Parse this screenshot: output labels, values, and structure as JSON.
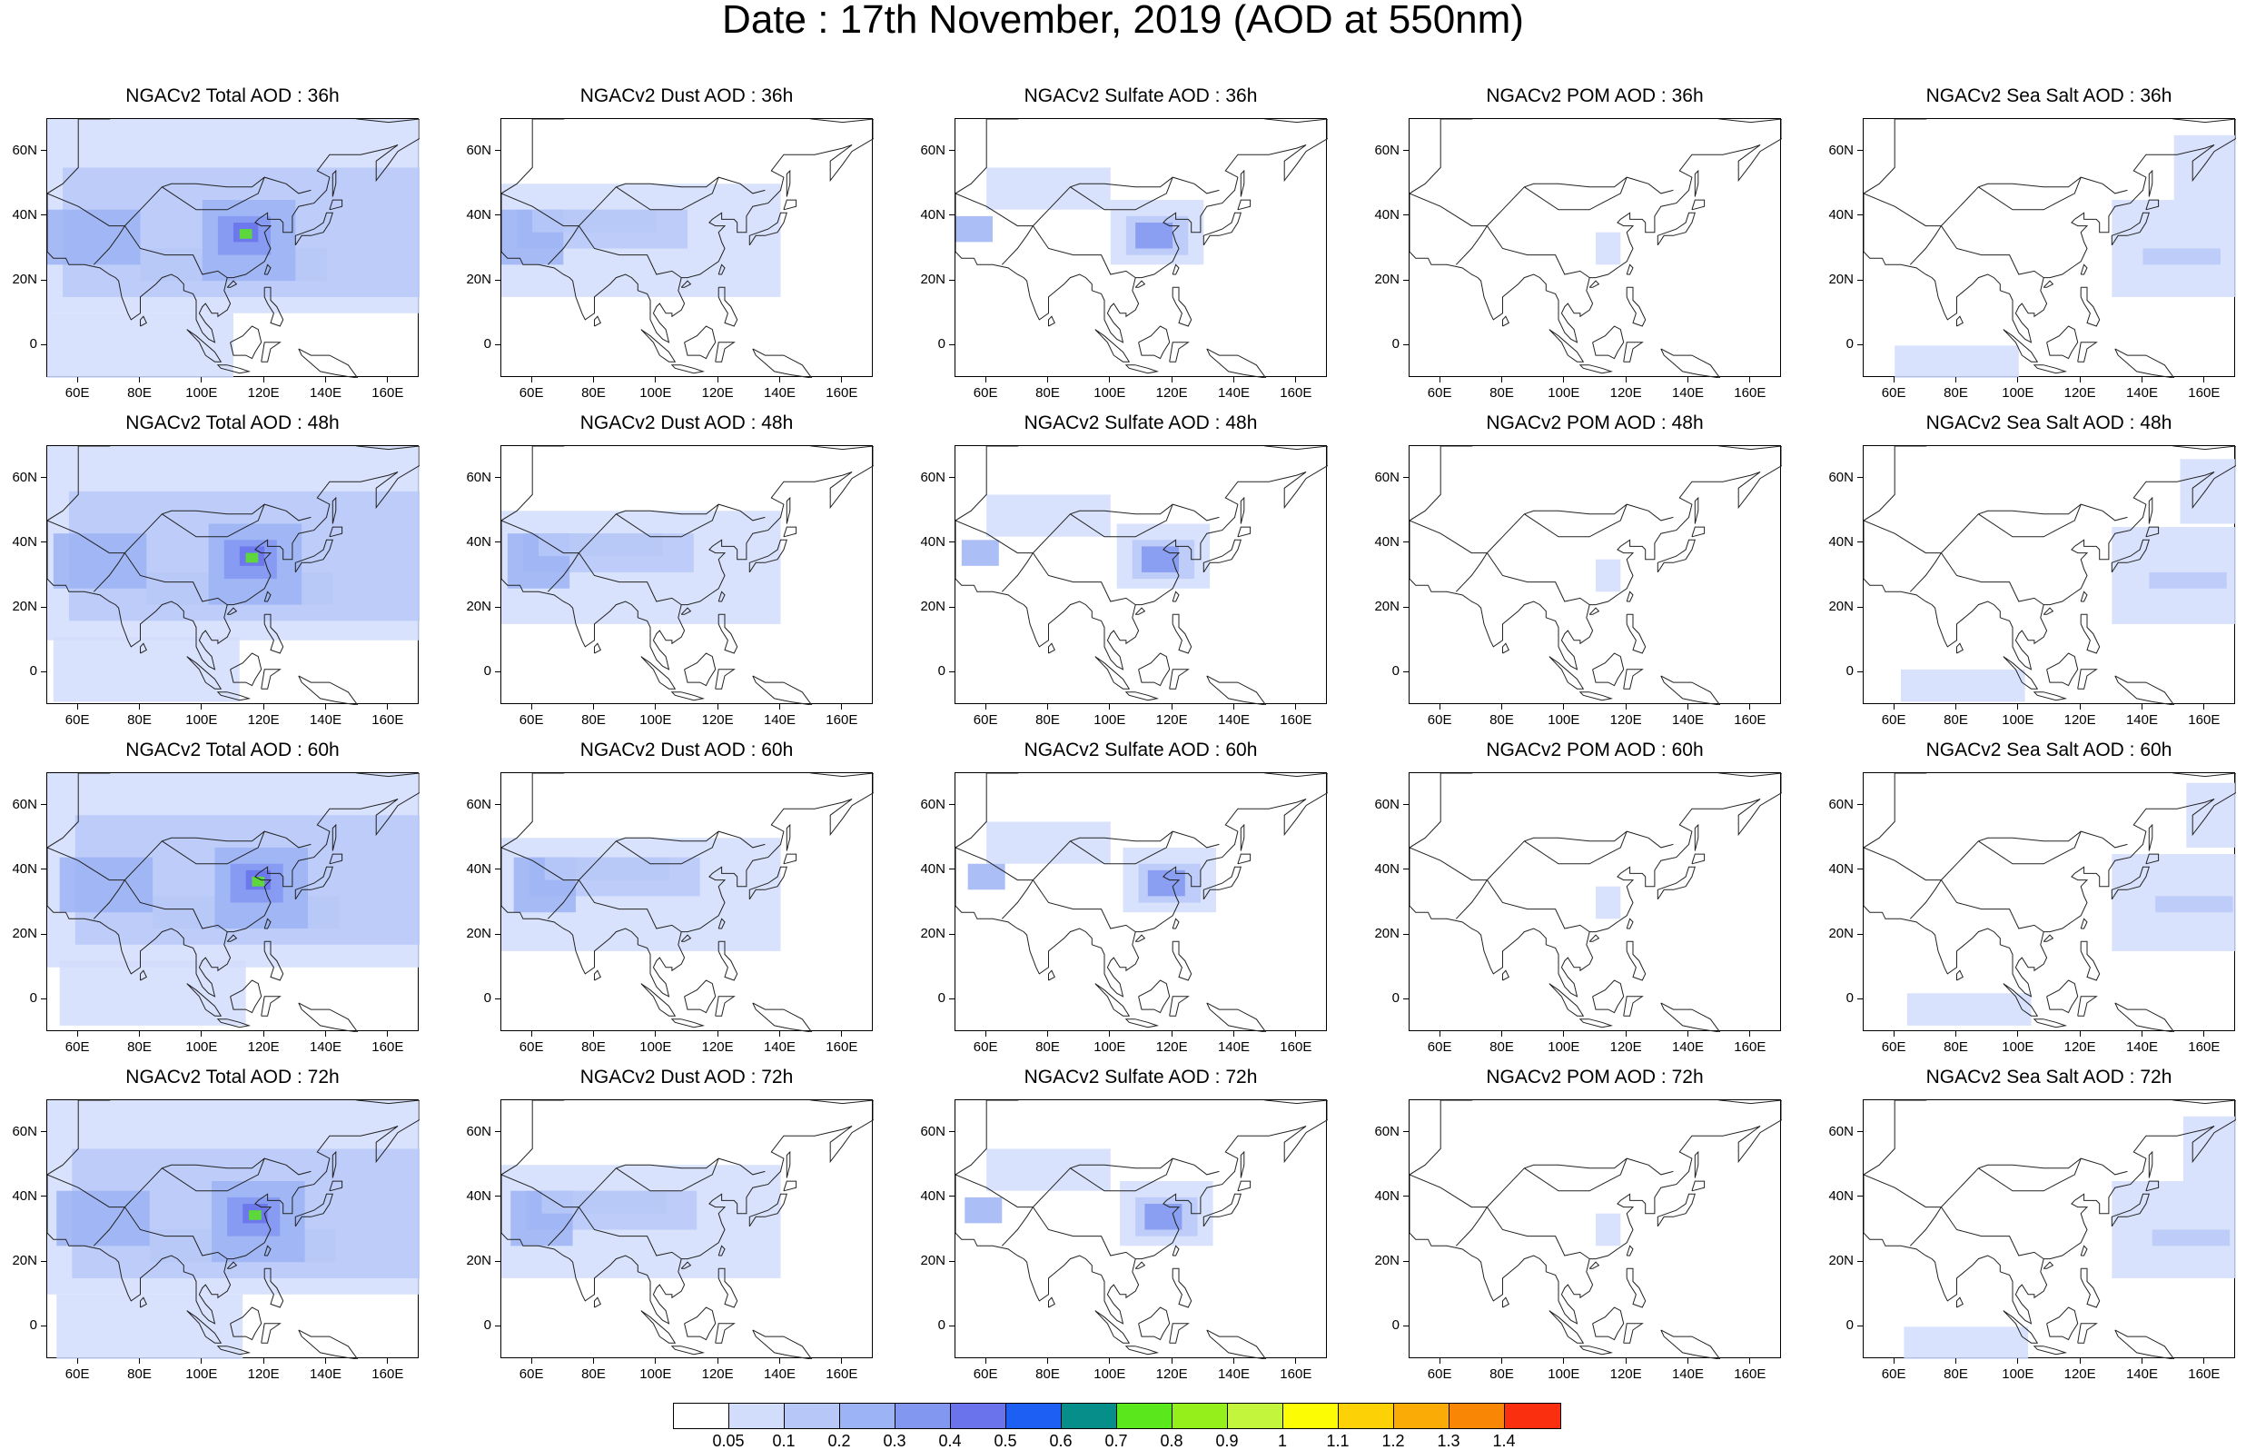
{
  "title": "Date : 17th November, 2019 (AOD at 550nm)",
  "x_ticks": [
    "60E",
    "80E",
    "100E",
    "120E",
    "140E",
    "160E"
  ],
  "y_ticks": [
    "60N",
    "40N",
    "20N",
    "0"
  ],
  "panels": [
    {
      "title": "NGACv2 Total AOD : 36h",
      "field": "total",
      "hour": "36h"
    },
    {
      "title": "NGACv2 Dust AOD : 36h",
      "field": "dust",
      "hour": "36h"
    },
    {
      "title": "NGACv2 Sulfate AOD : 36h",
      "field": "sulfate",
      "hour": "36h"
    },
    {
      "title": "NGACv2 POM AOD : 36h",
      "field": "pom",
      "hour": "36h"
    },
    {
      "title": "NGACv2 Sea Salt AOD : 36h",
      "field": "seasalt",
      "hour": "36h"
    },
    {
      "title": "NGACv2 Total AOD : 48h",
      "field": "total",
      "hour": "48h"
    },
    {
      "title": "NGACv2 Dust AOD : 48h",
      "field": "dust",
      "hour": "48h"
    },
    {
      "title": "NGACv2 Sulfate AOD : 48h",
      "field": "sulfate",
      "hour": "48h"
    },
    {
      "title": "NGACv2 POM AOD : 48h",
      "field": "pom",
      "hour": "48h"
    },
    {
      "title": "NGACv2 Sea Salt AOD : 48h",
      "field": "seasalt",
      "hour": "48h"
    },
    {
      "title": "NGACv2 Total AOD : 60h",
      "field": "total",
      "hour": "60h"
    },
    {
      "title": "NGACv2 Dust AOD : 60h",
      "field": "dust",
      "hour": "60h"
    },
    {
      "title": "NGACv2 Sulfate AOD : 60h",
      "field": "sulfate",
      "hour": "60h"
    },
    {
      "title": "NGACv2 POM AOD : 60h",
      "field": "pom",
      "hour": "60h"
    },
    {
      "title": "NGACv2 Sea Salt AOD : 60h",
      "field": "seasalt",
      "hour": "60h"
    },
    {
      "title": "NGACv2 Total AOD : 72h",
      "field": "total",
      "hour": "72h"
    },
    {
      "title": "NGACv2 Dust AOD : 72h",
      "field": "dust",
      "hour": "72h"
    },
    {
      "title": "NGACv2 Sulfate AOD : 72h",
      "field": "sulfate",
      "hour": "72h"
    },
    {
      "title": "NGACv2 POM AOD : 72h",
      "field": "pom",
      "hour": "72h"
    },
    {
      "title": "NGACv2 Sea Salt  AOD : 72h",
      "field": "seasalt",
      "hour": "72h"
    }
  ],
  "colorbar": {
    "colors": [
      "#ffffff",
      "#d2ddfb",
      "#b7c8f8",
      "#9cb3f5",
      "#8197f0",
      "#6a72ec",
      "#1c5ff2",
      "#058e8a",
      "#5ae81c",
      "#94ef1a",
      "#c2f53c",
      "#fcfc05",
      "#fcd105",
      "#fbab05",
      "#f98705",
      "#f92f10"
    ],
    "labels": [
      "0.05",
      "0.1",
      "0.2",
      "0.3",
      "0.4",
      "0.5",
      "0.6",
      "0.7",
      "0.8",
      "0.9",
      "1",
      "1.1",
      "1.2",
      "1.3",
      "1.4"
    ]
  }
}
